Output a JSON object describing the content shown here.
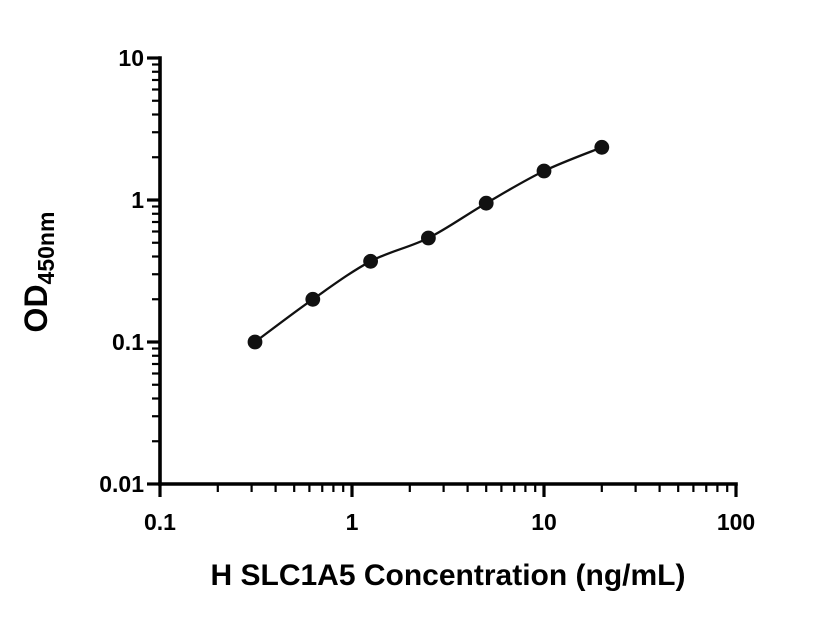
{
  "chart_data": {
    "type": "scatter",
    "subtype": "standard-curve-log-log",
    "x": [
      0.3125,
      0.625,
      1.25,
      2.5,
      5,
      10,
      20
    ],
    "y": [
      0.1,
      0.2,
      0.37,
      0.54,
      0.95,
      1.6,
      2.35
    ],
    "xlabel": "H SLC1A5 Concentration (ng/mL)",
    "ylabel_main": "OD",
    "ylabel_sub": "450nm",
    "x_scale": "log",
    "y_scale": "log",
    "xlim": [
      0.1,
      100
    ],
    "ylim": [
      0.01,
      10
    ],
    "x_ticks": [
      0.1,
      1,
      10,
      100
    ],
    "x_tick_labels": [
      "0.1",
      "1",
      "10",
      "100"
    ],
    "y_ticks": [
      0.01,
      0.1,
      1,
      10
    ],
    "y_tick_labels": [
      "0.01",
      "0.1",
      "1",
      "10"
    ],
    "grid": "off",
    "legend": "none",
    "colors": {
      "background": "#ffffff",
      "axis": "#000000",
      "point": "#111111",
      "line": "#111111",
      "text": "#000000"
    }
  }
}
